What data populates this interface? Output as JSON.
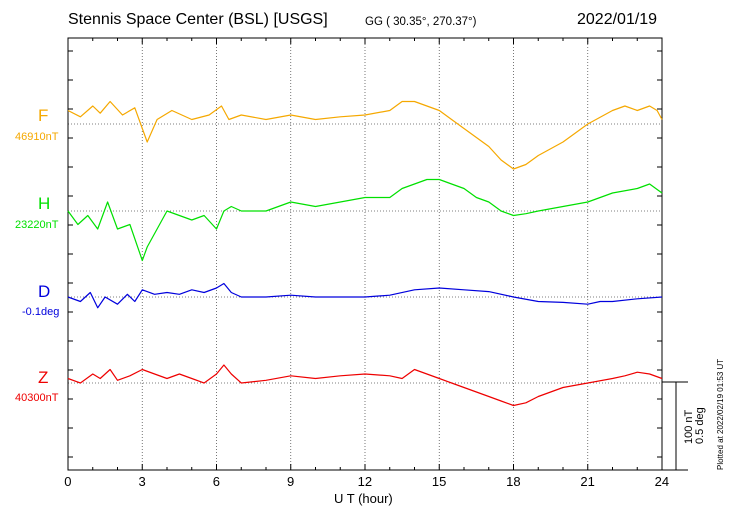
{
  "header": {
    "station": "Stennis Space Center (BSL)  [USGS]",
    "coords": "GG ( 30.35°, 270.37°)",
    "date": "2022/01/19"
  },
  "scale_bar": {
    "nt": "100 nT",
    "deg": "0.5 deg"
  },
  "plotted_at": "Plotted at 2022/02/19 01:53 UT",
  "colors": {
    "F": "#f5a800",
    "H": "#00e000",
    "D": "#0000dd",
    "Z": "#ee0000"
  },
  "chart_data": {
    "type": "line",
    "title": "Stennis Space Center (BSL)  [USGS]",
    "xlabel": "U T (hour)",
    "xlim": [
      0,
      24
    ],
    "xticks": [
      "0",
      "3",
      "6",
      "9",
      "12",
      "15",
      "18",
      "21",
      "24"
    ],
    "grid": true,
    "series": [
      {
        "name": "F",
        "baseline_label": "46910nT",
        "color": "#f5a800",
        "x": [
          0,
          0.5,
          1.0,
          1.3,
          1.7,
          2.2,
          2.7,
          3.2,
          3.6,
          4.2,
          5.0,
          5.7,
          6.2,
          6.5,
          7.0,
          8.0,
          9.0,
          10.0,
          11.0,
          12.0,
          13.0,
          13.5,
          14.0,
          14.5,
          15.0,
          15.5,
          16.0,
          16.5,
          17.0,
          17.5,
          18.0,
          18.5,
          19.0,
          20.0,
          21.0,
          22.0,
          22.5,
          23.0,
          23.5,
          23.8,
          24.0
        ],
        "y": [
          15,
          8,
          20,
          12,
          25,
          10,
          18,
          -20,
          5,
          15,
          5,
          10,
          20,
          5,
          10,
          5,
          10,
          5,
          8,
          10,
          15,
          25,
          25,
          20,
          15,
          5,
          -5,
          -15,
          -25,
          -40,
          -50,
          -45,
          -35,
          -20,
          0,
          15,
          20,
          15,
          20,
          15,
          5
        ]
      },
      {
        "name": "H",
        "baseline_label": "23220nT",
        "color": "#00e000",
        "x": [
          0,
          0.4,
          0.8,
          1.2,
          1.6,
          2.0,
          2.5,
          3.0,
          3.2,
          3.6,
          4.0,
          4.5,
          5.0,
          5.5,
          6.0,
          6.3,
          6.6,
          7.0,
          8.0,
          9.0,
          10.0,
          11.0,
          12.0,
          13.0,
          13.5,
          14.0,
          14.5,
          15.0,
          15.5,
          16.0,
          16.5,
          17.0,
          17.5,
          18.0,
          18.5,
          19.0,
          20.0,
          21.0,
          22.0,
          23.0,
          23.5,
          24.0
        ],
        "y": [
          0,
          -15,
          -5,
          -20,
          10,
          -20,
          -15,
          -55,
          -40,
          -20,
          0,
          -5,
          -10,
          -5,
          -20,
          0,
          5,
          0,
          0,
          10,
          5,
          10,
          15,
          15,
          25,
          30,
          35,
          35,
          30,
          25,
          15,
          10,
          0,
          -5,
          -3,
          0,
          5,
          10,
          20,
          25,
          30,
          20
        ]
      },
      {
        "name": "D",
        "baseline_label": "-0.1deg",
        "color": "#0000dd",
        "x": [
          0,
          0.5,
          0.9,
          1.2,
          1.5,
          2.0,
          2.4,
          2.7,
          3.0,
          3.5,
          4.0,
          4.5,
          5.0,
          5.5,
          6.0,
          6.3,
          6.6,
          7.0,
          8.0,
          9.0,
          10.0,
          11.0,
          12.0,
          13.0,
          14.0,
          15.0,
          16.0,
          17.0,
          18.0,
          19.0,
          20.0,
          21.0,
          21.5,
          22.0,
          23.0,
          24.0
        ],
        "y": [
          0,
          -5,
          5,
          -12,
          0,
          -8,
          3,
          -5,
          8,
          3,
          5,
          3,
          8,
          5,
          10,
          15,
          5,
          0,
          0,
          2,
          0,
          0,
          0,
          2,
          8,
          10,
          8,
          6,
          0,
          -5,
          -6,
          -8,
          -5,
          -5,
          -2,
          0
        ]
      },
      {
        "name": "Z",
        "baseline_label": "40300nT",
        "color": "#ee0000",
        "x": [
          0,
          0.5,
          1.0,
          1.3,
          1.7,
          2.0,
          2.5,
          3.0,
          3.5,
          4.0,
          4.5,
          5.0,
          5.5,
          6.0,
          6.3,
          6.6,
          7.0,
          8.0,
          9.0,
          10.0,
          11.0,
          12.0,
          13.0,
          13.5,
          14.0,
          14.5,
          15.0,
          15.5,
          16.0,
          16.5,
          17.0,
          17.5,
          18.0,
          18.5,
          19.0,
          20.0,
          21.0,
          22.0,
          22.5,
          23.0,
          23.5,
          24.0
        ],
        "y": [
          5,
          0,
          10,
          5,
          15,
          3,
          8,
          15,
          10,
          5,
          10,
          5,
          0,
          10,
          20,
          10,
          0,
          3,
          8,
          5,
          8,
          10,
          8,
          5,
          15,
          10,
          5,
          0,
          -5,
          -10,
          -15,
          -20,
          -25,
          -22,
          -15,
          -5,
          0,
          5,
          8,
          12,
          10,
          5
        ]
      }
    ]
  }
}
